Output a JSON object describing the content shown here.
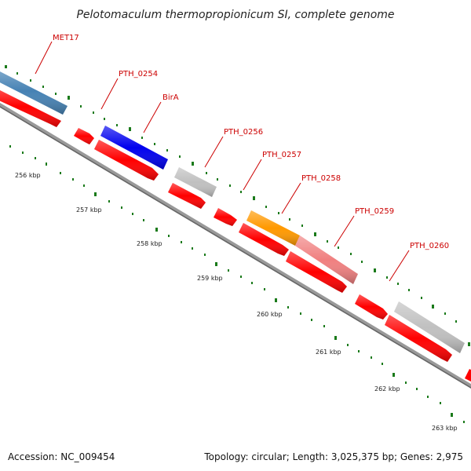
{
  "title": "Pelotomaculum thermopropionicum SI, complete genome",
  "footer": {
    "accession": "Accession: NC_009454",
    "topology": "Topology: circular; Length: 3,025,375 bp; Genes: 2,975"
  },
  "colors": {
    "backbone": "#888888",
    "cds": "#ff0000",
    "label": "#cc0000",
    "tick": "#1a7a1a",
    "met17": "#4682b4",
    "birA": "#0000ee",
    "hypothetical": "#c0c0c0",
    "pth_0257": "#ff9900",
    "pth_0258": "#f08080"
  },
  "tick_labels": [
    "256 kbp",
    "257 kbp",
    "258 kbp",
    "259 kbp",
    "260 kbp",
    "261 kbp",
    "262 kbp",
    "263 kbp"
  ],
  "gene_labels": [
    "MET17",
    "PTH_0254",
    "BirA",
    "PTH_0256",
    "PTH_0257",
    "PTH_0258",
    "PTH_0259",
    "PTH_0260"
  ]
}
